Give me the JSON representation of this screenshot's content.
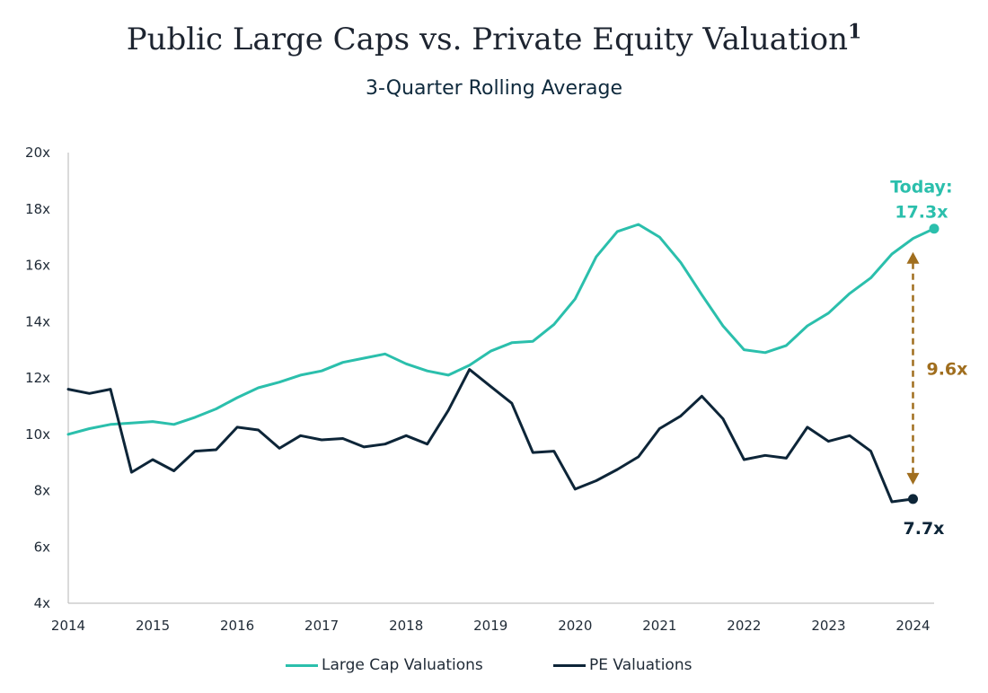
{
  "chart_data": {
    "type": "line",
    "title": "Public Large Caps vs. Private Equity Valuation",
    "title_superscript": "1",
    "subtitle": "3-Quarter Rolling Average",
    "xlabel": "",
    "ylabel": "",
    "xlim": [
      2014,
      2024.25
    ],
    "ylim": [
      4,
      20
    ],
    "x_ticks": [
      "2014",
      "2015",
      "2016",
      "2017",
      "2018",
      "2019",
      "2020",
      "2021",
      "2022",
      "2023",
      "2024"
    ],
    "y_ticks": [
      "4x",
      "6x",
      "8x",
      "10x",
      "12x",
      "14x",
      "16x",
      "18x",
      "20x"
    ],
    "grid": false,
    "legend_position": "bottom",
    "x": [
      2014.0,
      2014.25,
      2014.5,
      2014.75,
      2015.0,
      2015.25,
      2015.5,
      2015.75,
      2016.0,
      2016.25,
      2016.5,
      2016.75,
      2017.0,
      2017.25,
      2017.5,
      2017.75,
      2018.0,
      2018.25,
      2018.5,
      2018.75,
      2019.0,
      2019.25,
      2019.5,
      2019.75,
      2020.0,
      2020.25,
      2020.5,
      2020.75,
      2021.0,
      2021.25,
      2021.5,
      2021.75,
      2022.0,
      2022.25,
      2022.5,
      2022.75,
      2023.0,
      2023.25,
      2023.5,
      2023.75,
      2024.0,
      2024.25
    ],
    "series": [
      {
        "name": "Large Cap Valuations",
        "color": "#2bbfac",
        "values": [
          10.0,
          10.2,
          10.35,
          10.4,
          10.45,
          10.35,
          10.6,
          10.9,
          11.3,
          11.65,
          11.85,
          12.1,
          12.25,
          12.55,
          12.7,
          12.85,
          12.5,
          12.25,
          12.1,
          12.45,
          12.95,
          13.25,
          13.3,
          13.9,
          14.8,
          16.3,
          17.2,
          17.45,
          17.0,
          16.1,
          14.95,
          13.85,
          13.0,
          12.9,
          13.15,
          13.85,
          14.3,
          15.0,
          15.55,
          16.4,
          16.95,
          17.3
        ]
      },
      {
        "name": "PE Valuations",
        "color": "#0d2538",
        "values": [
          11.6,
          11.45,
          11.6,
          8.65,
          9.1,
          8.7,
          9.4,
          9.45,
          10.25,
          10.15,
          9.5,
          9.95,
          9.8,
          9.85,
          9.55,
          9.65,
          9.95,
          9.65,
          10.85,
          12.3,
          11.7,
          11.1,
          9.35,
          9.4,
          8.05,
          8.35,
          8.75,
          9.2,
          10.2,
          10.65,
          11.35,
          10.55,
          9.1,
          9.25,
          9.15,
          10.25,
          9.75,
          9.95,
          9.4,
          7.6,
          7.7,
          null
        ]
      }
    ],
    "annotations": {
      "today_label": "Today:",
      "today_value": "17.3x",
      "pe_value": "7.7x",
      "gap": "9.6x",
      "gap_color": "#a06e1e"
    }
  }
}
